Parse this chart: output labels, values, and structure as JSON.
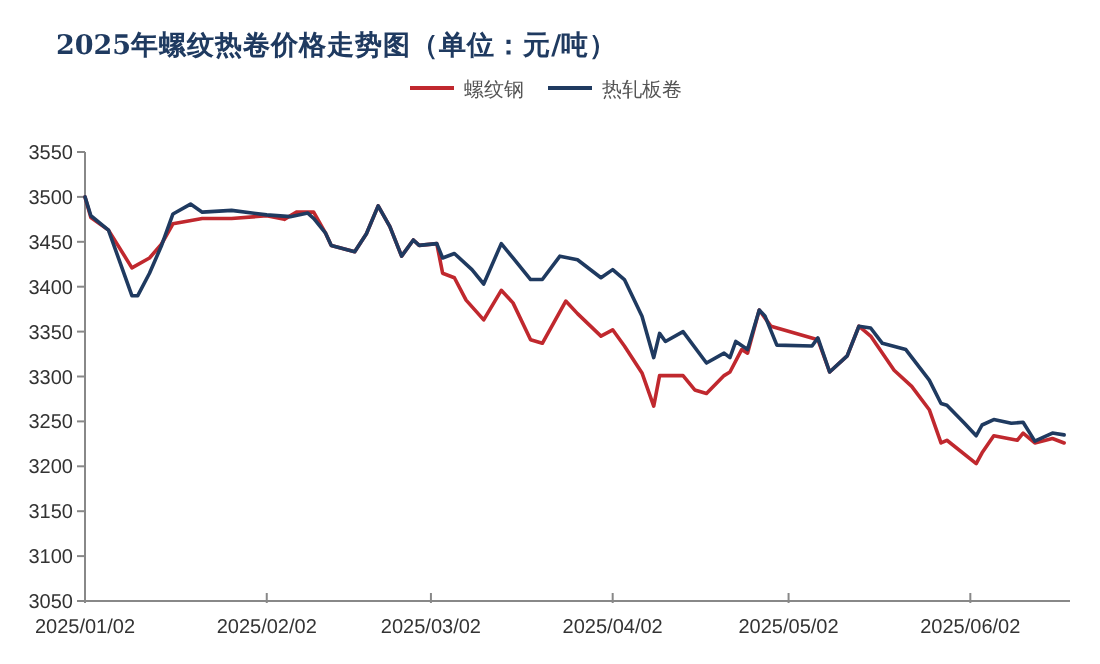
{
  "chart_data": {
    "type": "line",
    "title": "2025年螺纹热卷价格走势图（单位：元/吨）",
    "legend": "top",
    "marker": "none",
    "line_style": "solid",
    "grid": false,
    "xlim": [
      "2025-01-02",
      "2025-06-19"
    ],
    "xticks": [
      {
        "value": "2025-01-02",
        "label": "2025/01/02"
      },
      {
        "value": "2025-02-02",
        "label": "2025/02/02"
      },
      {
        "value": "2025-03-02",
        "label": "2025/03/02"
      },
      {
        "value": "2025-04-02",
        "label": "2025/04/02"
      },
      {
        "value": "2025-05-02",
        "label": "2025/05/02"
      },
      {
        "value": "2025-06-02",
        "label": "2025/06/02"
      }
    ],
    "ylim": [
      3050,
      3550
    ],
    "yticks": [
      3050,
      3100,
      3150,
      3200,
      3250,
      3300,
      3350,
      3400,
      3450,
      3500,
      3550
    ],
    "series": [
      {
        "name": "螺纹钢",
        "color": "#c0282e",
        "x": [
          "2025-01-02",
          "2025-01-03",
          "2025-01-06",
          "2025-01-10",
          "2025-01-13",
          "2025-01-15",
          "2025-01-17",
          "2025-01-22",
          "2025-01-27",
          "2025-02-02",
          "2025-02-05",
          "2025-02-07",
          "2025-02-10",
          "2025-02-12",
          "2025-02-13",
          "2025-02-17",
          "2025-02-19",
          "2025-02-21",
          "2025-02-23",
          "2025-02-25",
          "2025-02-27",
          "2025-02-28",
          "2025-03-03",
          "2025-03-04",
          "2025-03-06",
          "2025-03-08",
          "2025-03-11",
          "2025-03-14",
          "2025-03-16",
          "2025-03-19",
          "2025-03-21",
          "2025-03-25",
          "2025-03-27",
          "2025-03-31",
          "2025-04-02",
          "2025-04-04",
          "2025-04-07",
          "2025-04-09",
          "2025-04-10",
          "2025-04-14",
          "2025-04-16",
          "2025-04-18",
          "2025-04-21",
          "2025-04-22",
          "2025-04-24",
          "2025-04-25",
          "2025-04-27",
          "2025-04-29",
          "2025-05-07",
          "2025-05-09",
          "2025-05-12",
          "2025-05-14",
          "2025-05-16",
          "2025-05-20",
          "2025-05-23",
          "2025-05-26",
          "2025-05-28",
          "2025-05-29",
          "2025-06-03",
          "2025-06-04",
          "2025-06-06",
          "2025-06-10",
          "2025-06-11",
          "2025-06-13",
          "2025-06-16",
          "2025-06-18"
        ],
        "values": [
          3500,
          3477,
          3463,
          3421,
          3432,
          3447,
          3470,
          3476,
          3476,
          3479,
          3475,
          3483,
          3483,
          3460,
          3446,
          3439,
          3459,
          3490,
          3467,
          3434,
          3452,
          3446,
          3448,
          3415,
          3410,
          3385,
          3363,
          3396,
          3382,
          3341,
          3337,
          3384,
          3370,
          3345,
          3352,
          3334,
          3304,
          3267,
          3301,
          3301,
          3285,
          3281,
          3301,
          3305,
          3330,
          3326,
          3374,
          3356,
          3341,
          3305,
          3323,
          3356,
          3345,
          3307,
          3289,
          3263,
          3226,
          3229,
          3203,
          3215,
          3234,
          3229,
          3237,
          3226,
          3231,
          3226
        ]
      },
      {
        "name": "热轧板卷",
        "color": "#1f3a60",
        "x": [
          "2025-01-02",
          "2025-01-03",
          "2025-01-06",
          "2025-01-10",
          "2025-01-11",
          "2025-01-13",
          "2025-01-15",
          "2025-01-17",
          "2025-01-20",
          "2025-01-22",
          "2025-01-27",
          "2025-02-02",
          "2025-02-06",
          "2025-02-09",
          "2025-02-10",
          "2025-02-12",
          "2025-02-13",
          "2025-02-17",
          "2025-02-19",
          "2025-02-21",
          "2025-02-23",
          "2025-02-25",
          "2025-02-27",
          "2025-02-28",
          "2025-03-03",
          "2025-03-04",
          "2025-03-06",
          "2025-03-09",
          "2025-03-11",
          "2025-03-14",
          "2025-03-16",
          "2025-03-19",
          "2025-03-21",
          "2025-03-24",
          "2025-03-27",
          "2025-03-31",
          "2025-04-02",
          "2025-04-04",
          "2025-04-07",
          "2025-04-09",
          "2025-04-10",
          "2025-04-11",
          "2025-04-14",
          "2025-04-18",
          "2025-04-21",
          "2025-04-22",
          "2025-04-23",
          "2025-04-25",
          "2025-04-27",
          "2025-04-28",
          "2025-04-30",
          "2025-05-06",
          "2025-05-07",
          "2025-05-09",
          "2025-05-12",
          "2025-05-14",
          "2025-05-16",
          "2025-05-18",
          "2025-05-22",
          "2025-05-26",
          "2025-05-28",
          "2025-05-29",
          "2025-06-01",
          "2025-06-03",
          "2025-06-04",
          "2025-06-06",
          "2025-06-09",
          "2025-06-11",
          "2025-06-13",
          "2025-06-16",
          "2025-06-18"
        ],
        "values": [
          3500,
          3479,
          3463,
          3390,
          3390,
          3415,
          3445,
          3481,
          3492,
          3483,
          3485,
          3480,
          3478,
          3482,
          3476,
          3460,
          3446,
          3439,
          3459,
          3490,
          3467,
          3434,
          3452,
          3446,
          3448,
          3432,
          3437,
          3419,
          3403,
          3448,
          3432,
          3408,
          3408,
          3434,
          3430,
          3410,
          3419,
          3408,
          3367,
          3321,
          3348,
          3339,
          3350,
          3315,
          3326,
          3321,
          3339,
          3330,
          3374,
          3367,
          3335,
          3334,
          3343,
          3305,
          3323,
          3356,
          3354,
          3337,
          3330,
          3296,
          3270,
          3268,
          3248,
          3234,
          3246,
          3252,
          3248,
          3249,
          3228,
          3237,
          3235
        ]
      }
    ]
  }
}
